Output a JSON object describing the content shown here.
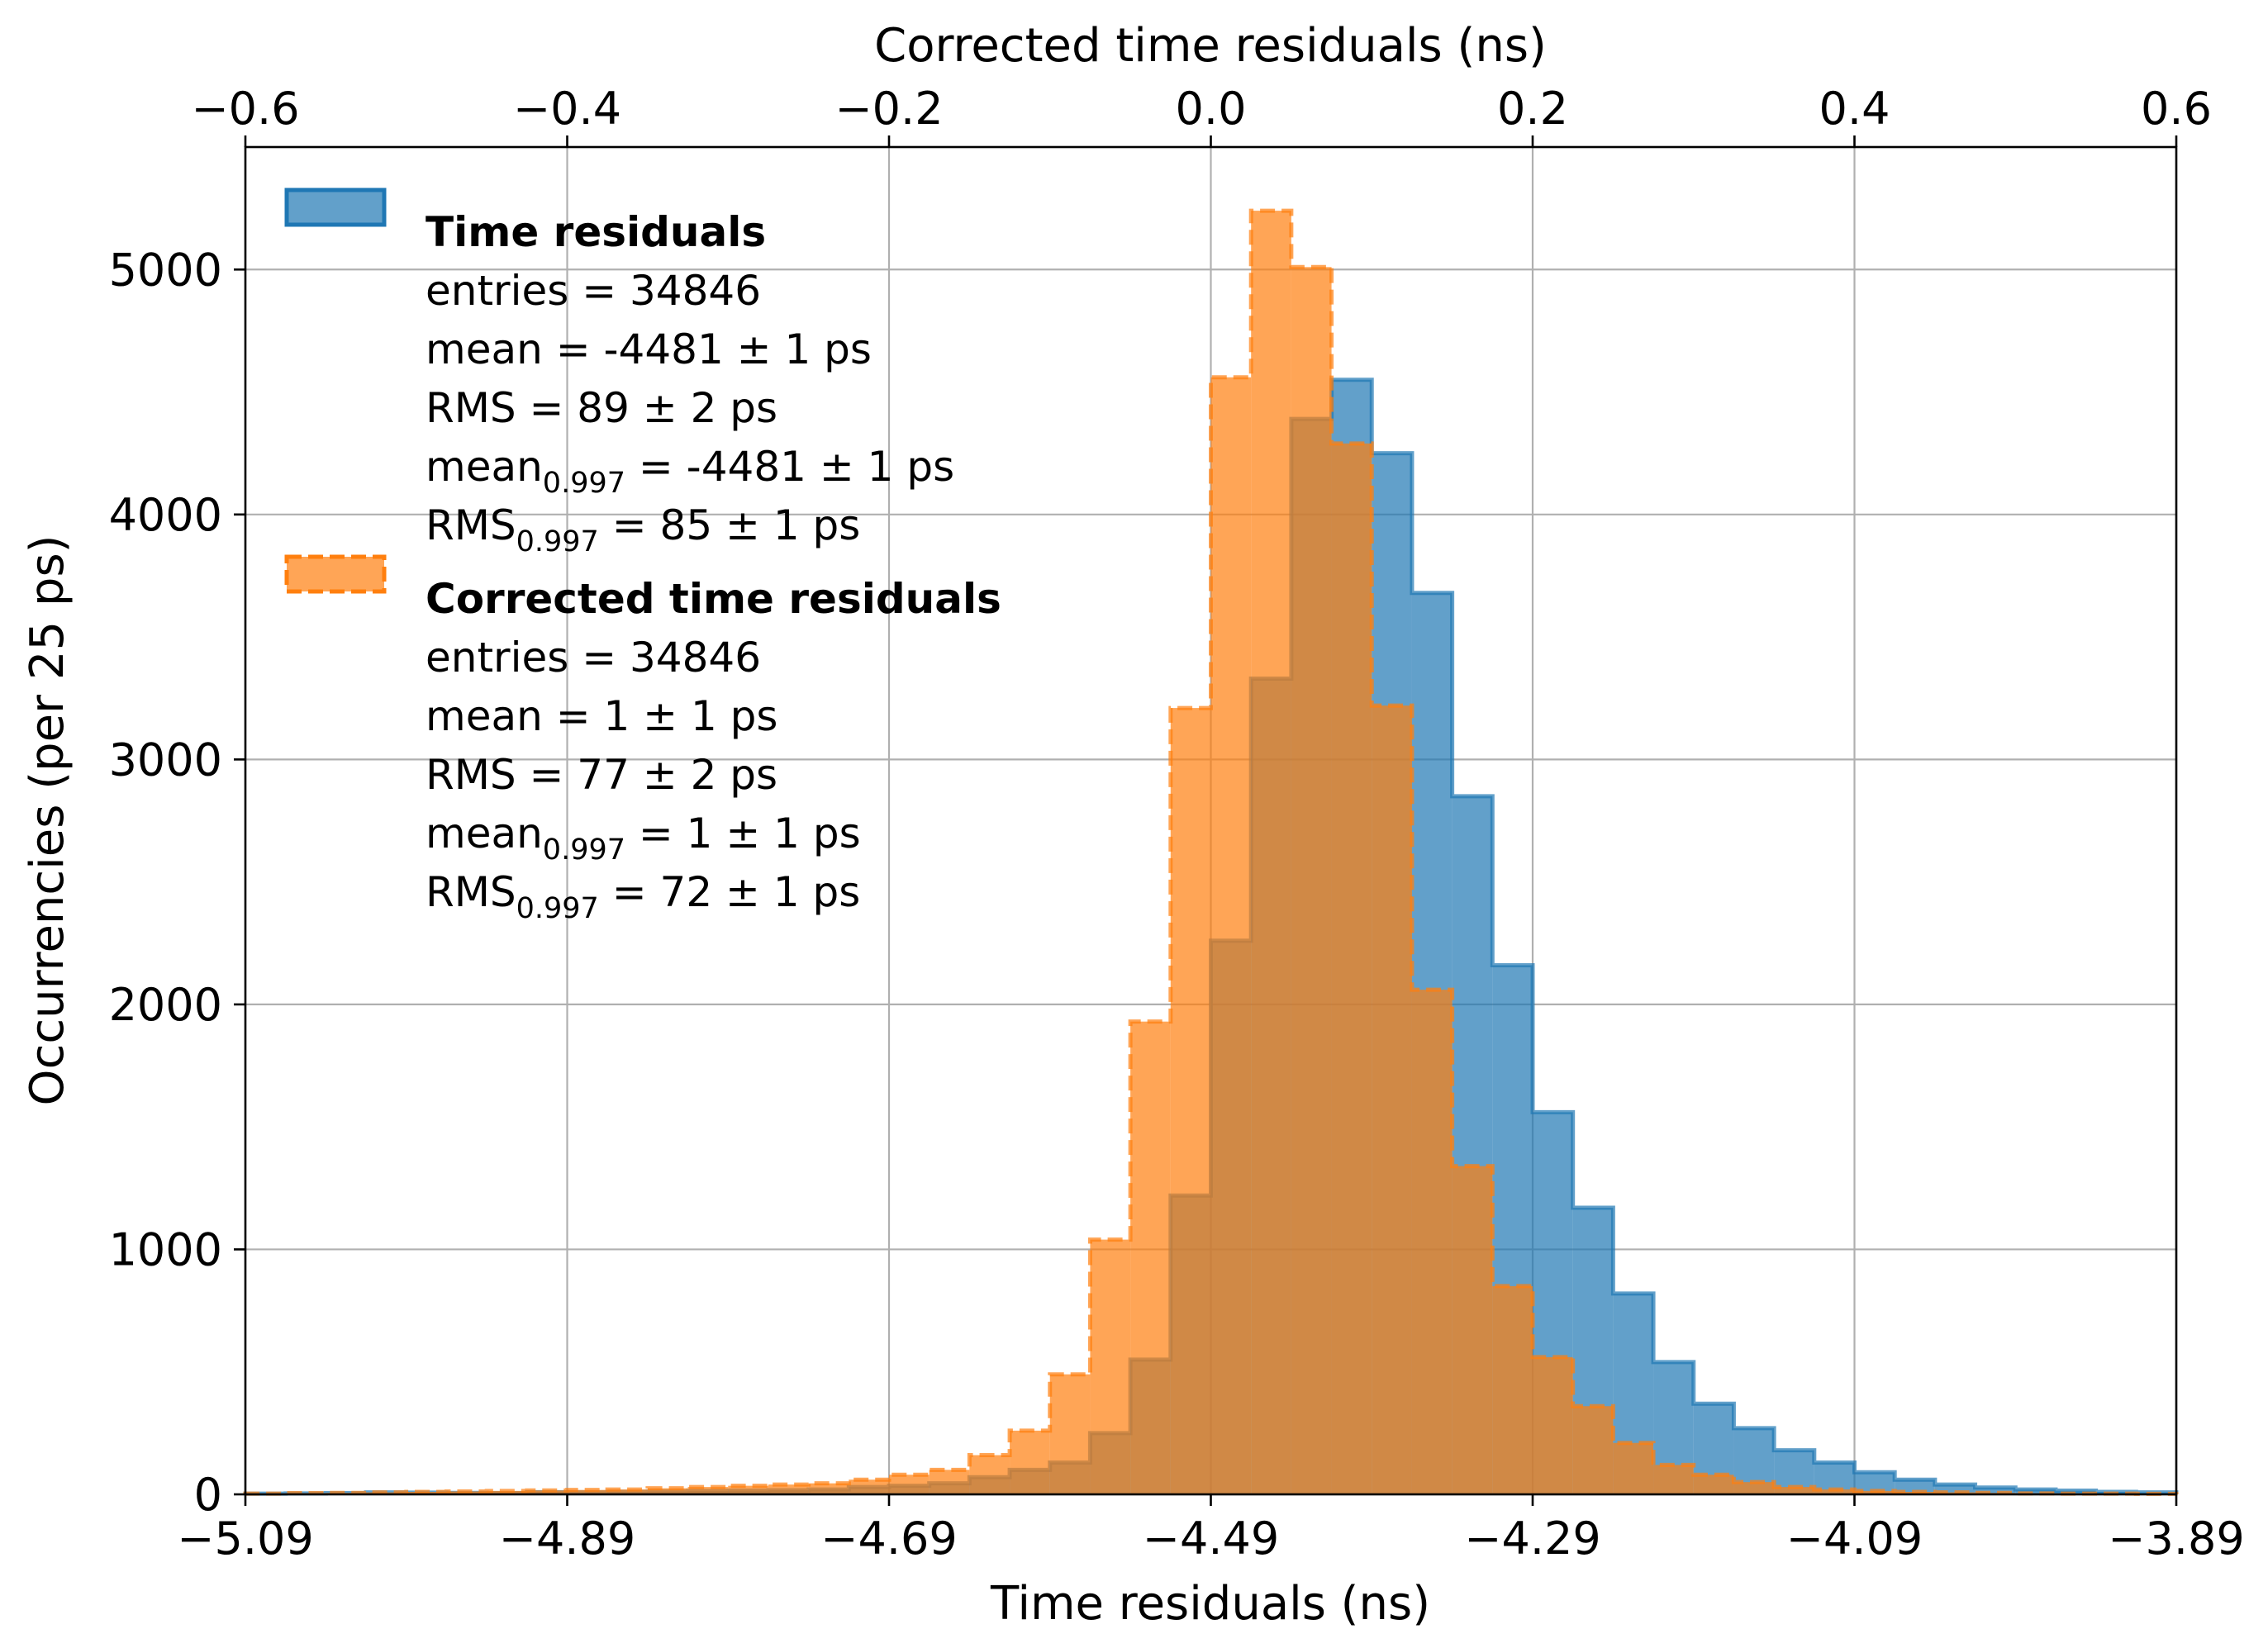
{
  "chart_data": {
    "type": "bar",
    "xlabel": "Time residuals (ns)",
    "x2label": "Corrected time residuals (ns)",
    "ylabel": "Occurrencies (per 25 ps)",
    "xlim": [
      -5.09,
      -3.89
    ],
    "x2lim": [
      -0.6,
      0.6
    ],
    "ylim": [
      0,
      5500
    ],
    "grid": true,
    "legend_position": "top-left",
    "x_ticks": [
      "−5.09",
      "−4.89",
      "−4.69",
      "−4.49",
      "−4.29",
      "−4.09",
      "−3.89"
    ],
    "x2_ticks": [
      "−0.6",
      "−0.4",
      "−0.2",
      "0.0",
      "0.2",
      "0.4",
      "0.6"
    ],
    "y_ticks": [
      "0",
      "1000",
      "2000",
      "3000",
      "4000",
      "5000"
    ],
    "series": [
      {
        "name": "Time residuals",
        "color": "#1f77b4",
        "linestyle": "solid",
        "axis": "bottom",
        "x_start": -5.09,
        "bin_width": 0.025,
        "counts": [
          3,
          4,
          5,
          8,
          7,
          6,
          5,
          9,
          8,
          10,
          12,
          14,
          15,
          17,
          20,
          30,
          35,
          45,
          70,
          100,
          130,
          250,
          550,
          1220,
          2260,
          3330,
          4390,
          4550,
          4250,
          3680,
          2850,
          2160,
          1560,
          1170,
          820,
          540,
          370,
          270,
          180,
          130,
          90,
          60,
          40,
          28,
          20,
          15,
          10,
          8
        ]
      },
      {
        "name": "Corrected time residuals",
        "color": "#ff7f0e",
        "linestyle": "dashed",
        "axis": "top",
        "x_start": -0.6,
        "bin_width": 0.025,
        "counts": [
          3,
          5,
          6,
          8,
          10,
          12,
          14,
          16,
          18,
          20,
          25,
          30,
          35,
          40,
          45,
          60,
          80,
          100,
          160,
          260,
          490,
          1040,
          1930,
          3210,
          4560,
          5240,
          5010,
          4290,
          3220,
          2060,
          1340,
          850,
          560,
          360,
          210,
          120,
          80,
          50,
          30,
          20,
          14,
          10,
          8,
          6,
          4,
          3,
          3,
          2
        ]
      }
    ],
    "legend": [
      {
        "title": "Time residuals",
        "lines": [
          {
            "text": "entries = 34846"
          },
          {
            "text": "mean = -4481 ± 1 ps"
          },
          {
            "text": "RMS = 89 ± 2 ps"
          },
          {
            "pre": "mean",
            "sub": "0.997",
            "post": " = -4481 ± 1 ps"
          },
          {
            "pre": "RMS",
            "sub": "0.997",
            "post": " = 85 ± 1 ps"
          }
        ]
      },
      {
        "title": "Corrected time residuals",
        "lines": [
          {
            "text": "entries = 34846"
          },
          {
            "text": "mean = 1 ± 1 ps"
          },
          {
            "text": "RMS = 77 ± 2 ps"
          },
          {
            "pre": "mean",
            "sub": "0.997",
            "post": " = 1 ± 1 ps"
          },
          {
            "pre": "RMS",
            "sub": "0.997",
            "post": " = 72 ± 1 ps"
          }
        ]
      }
    ]
  }
}
